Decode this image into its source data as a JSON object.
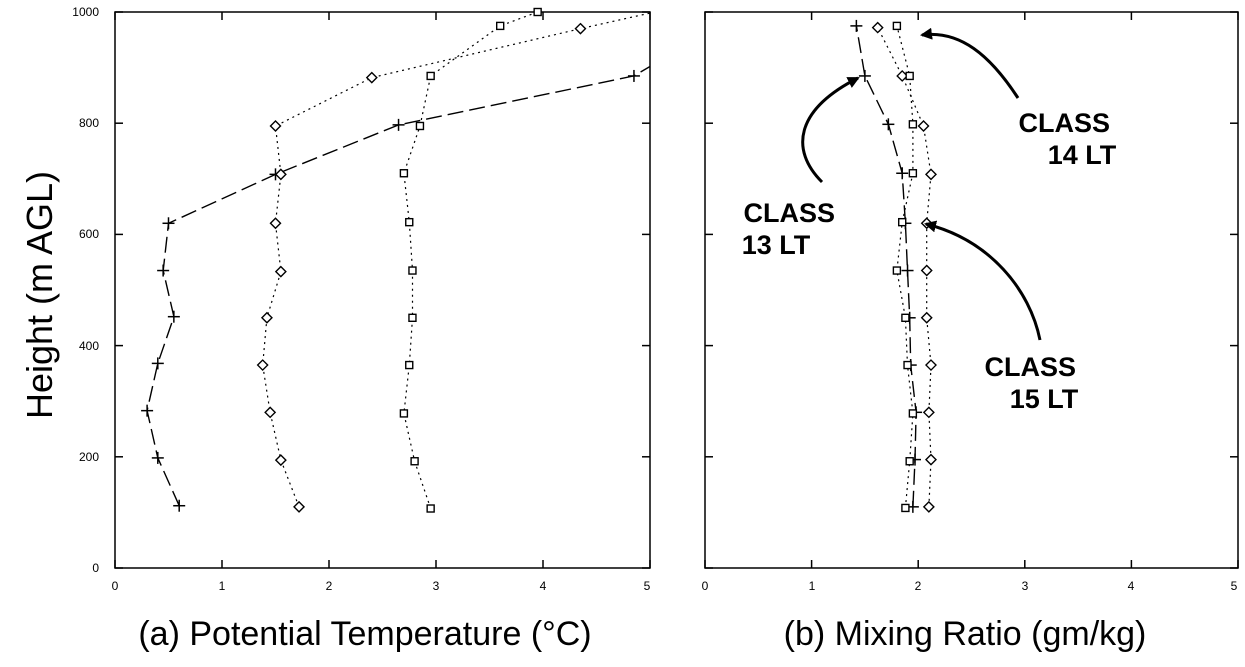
{
  "figure": {
    "ylabel": "Height (m AGL)"
  },
  "chart_data": [
    {
      "type": "line",
      "title": "(a) Potential Temperature (°C)",
      "xlabel": "(a) Potential Temperature (°C)",
      "ylabel": "Height (m AGL)",
      "xlim": [
        0,
        5
      ],
      "ylim": [
        0,
        1000
      ],
      "xticks": [
        "0",
        "1",
        "2",
        "3",
        "4",
        "5"
      ],
      "yticks": [
        "0",
        "200",
        "400",
        "600",
        "800",
        "1000"
      ],
      "grid": false,
      "series": [
        {
          "marker": "plus",
          "dash": "long",
          "points": [
            [
              0.6,
              112
            ],
            [
              0.4,
              198
            ],
            [
              0.3,
              283
            ],
            [
              0.4,
              368
            ],
            [
              0.55,
              452
            ],
            [
              0.45,
              535
            ],
            [
              0.5,
              620
            ],
            [
              1.5,
              708
            ],
            [
              2.65,
              797
            ],
            [
              4.85,
              885
            ],
            [
              5.0,
              902
            ]
          ]
        },
        {
          "marker": "diamond",
          "dash": "dot",
          "points": [
            [
              1.72,
              110
            ],
            [
              1.55,
              194
            ],
            [
              1.45,
              280
            ],
            [
              1.38,
              365
            ],
            [
              1.42,
              450
            ],
            [
              1.55,
              533
            ],
            [
              1.5,
              620
            ],
            [
              1.55,
              708
            ],
            [
              1.5,
              795
            ],
            [
              2.4,
              882
            ],
            [
              4.35,
              970
            ],
            [
              5.0,
              998
            ]
          ]
        },
        {
          "marker": "square",
          "dash": "dot",
          "points": [
            [
              2.95,
              107
            ],
            [
              2.8,
              192
            ],
            [
              2.7,
              278
            ],
            [
              2.75,
              365
            ],
            [
              2.78,
              450
            ],
            [
              2.78,
              535
            ],
            [
              2.75,
              622
            ],
            [
              2.7,
              710
            ],
            [
              2.85,
              795
            ],
            [
              2.95,
              885
            ],
            [
              3.6,
              975
            ],
            [
              3.95,
              1000
            ]
          ]
        }
      ]
    },
    {
      "type": "line",
      "title": "(b)  Mixing Ratio (gm/kg)",
      "xlabel": "(b)  Mixing Ratio (gm/kg)",
      "ylabel": "",
      "xlim": [
        0,
        5
      ],
      "ylim": [
        0,
        1000
      ],
      "xticks": [
        "0",
        "1",
        "2",
        "3",
        "4",
        "5"
      ],
      "yticks": [],
      "grid": false,
      "series": [
        {
          "marker": "plus",
          "dash": "long",
          "points": [
            [
              1.95,
              110
            ],
            [
              1.97,
              195
            ],
            [
              1.98,
              280
            ],
            [
              1.93,
              365
            ],
            [
              1.92,
              450
            ],
            [
              1.9,
              535
            ],
            [
              1.88,
              620
            ],
            [
              1.85,
              710
            ],
            [
              1.72,
              798
            ],
            [
              1.5,
              885
            ],
            [
              1.42,
              975
            ]
          ]
        },
        {
          "marker": "diamond",
          "dash": "dot",
          "points": [
            [
              2.1,
              110
            ],
            [
              2.12,
              195
            ],
            [
              2.1,
              280
            ],
            [
              2.12,
              365
            ],
            [
              2.08,
              450
            ],
            [
              2.08,
              535
            ],
            [
              2.08,
              620
            ],
            [
              2.12,
              708
            ],
            [
              2.05,
              795
            ],
            [
              1.85,
              885
            ],
            [
              1.62,
              972
            ]
          ]
        },
        {
          "marker": "square",
          "dash": "dot",
          "points": [
            [
              1.88,
              108
            ],
            [
              1.92,
              192
            ],
            [
              1.95,
              278
            ],
            [
              1.9,
              365
            ],
            [
              1.88,
              450
            ],
            [
              1.8,
              535
            ],
            [
              1.85,
              622
            ],
            [
              1.95,
              710
            ],
            [
              1.95,
              798
            ],
            [
              1.92,
              885
            ],
            [
              1.8,
              975
            ]
          ]
        }
      ],
      "annotations": [
        {
          "lines": [
            "CLASS",
            "13 LT"
          ],
          "arrow_to": [
            1.5,
            885
          ]
        },
        {
          "lines": [
            "CLASS",
            "14 LT"
          ],
          "arrow_to": [
            1.88,
            960
          ]
        },
        {
          "lines": [
            "CLASS",
            "15 LT"
          ],
          "arrow_to": [
            2.1,
            618
          ]
        }
      ]
    }
  ]
}
